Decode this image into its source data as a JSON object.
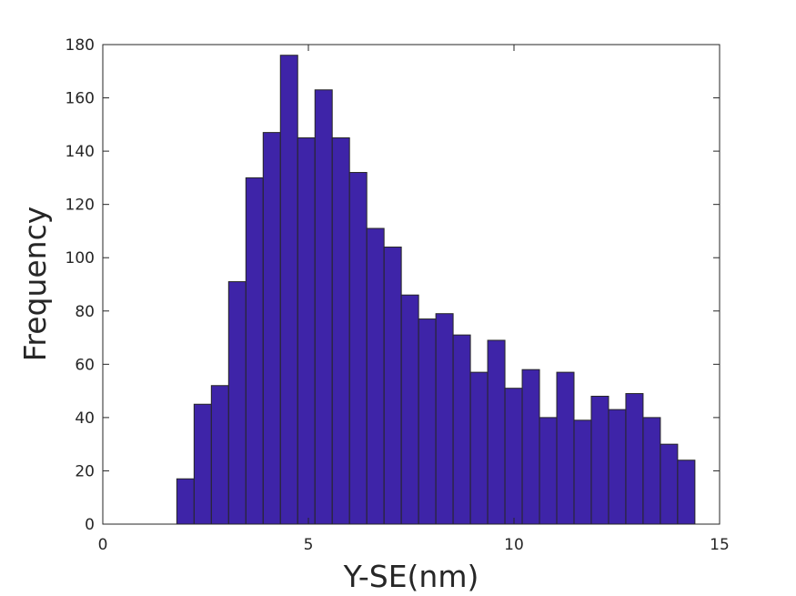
{
  "chart_data": {
    "type": "bar",
    "title": "",
    "xlabel": "Y-SE(nm)",
    "ylabel": "Frequency",
    "xlim": [
      0,
      15
    ],
    "ylim": [
      0,
      180
    ],
    "xticks": [
      0,
      5,
      10,
      15
    ],
    "yticks": [
      0,
      20,
      40,
      60,
      80,
      100,
      120,
      140,
      160,
      180
    ],
    "grid": false,
    "bar_color": "#3e24a8",
    "bar_edge_color": "#262626",
    "bin_edges": [
      1.8,
      2.22,
      2.64,
      3.06,
      3.48,
      3.9,
      4.32,
      4.74,
      5.16,
      5.58,
      6.0,
      6.42,
      6.84,
      7.26,
      7.68,
      8.1,
      8.52,
      8.94,
      9.36,
      9.78,
      10.2,
      10.62,
      11.04,
      11.46,
      11.88,
      12.3,
      12.72,
      13.14,
      13.56,
      13.98,
      14.4
    ],
    "values": [
      17,
      45,
      52,
      91,
      130,
      147,
      176,
      145,
      163,
      145,
      132,
      111,
      104,
      86,
      77,
      79,
      71,
      57,
      69,
      51,
      58,
      40,
      57,
      39,
      48,
      43,
      49,
      40,
      30,
      24
    ]
  }
}
